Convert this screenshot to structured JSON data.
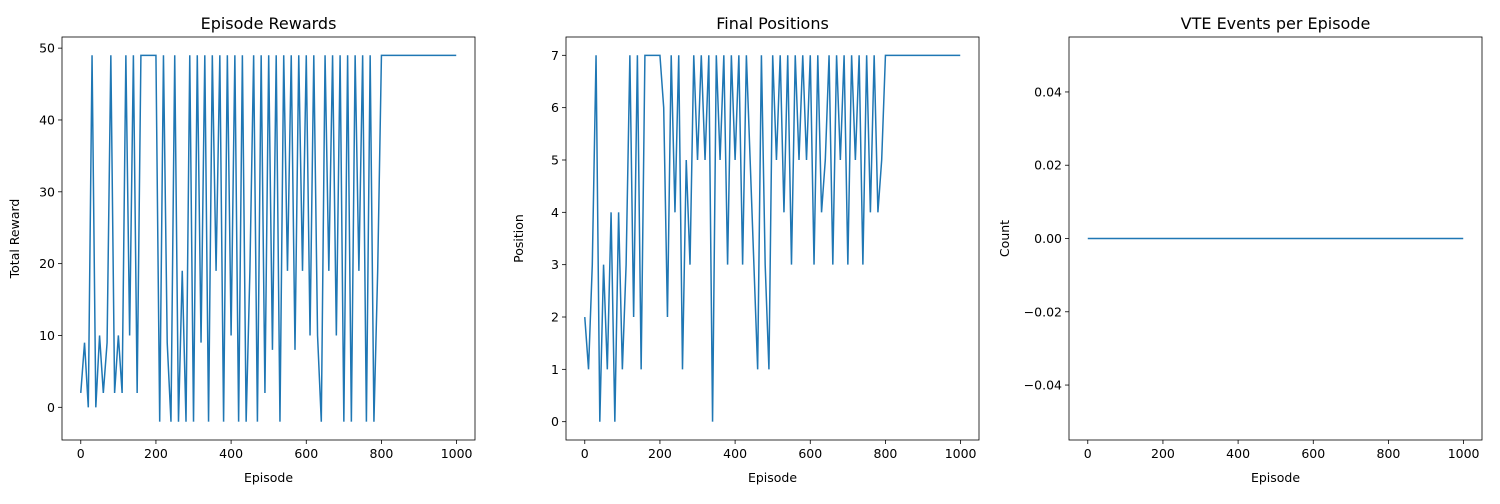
{
  "chart_data": [
    {
      "type": "line",
      "title": "Episode Rewards",
      "x_label": "Episode",
      "y_label": "Total Reward",
      "x": [
        0,
        10,
        20,
        30,
        40,
        50,
        60,
        70,
        80,
        90,
        100,
        110,
        120,
        130,
        140,
        150,
        160,
        170,
        180,
        190,
        200,
        210,
        220,
        230,
        240,
        250,
        260,
        270,
        280,
        290,
        300,
        310,
        320,
        330,
        340,
        350,
        360,
        370,
        380,
        390,
        400,
        410,
        420,
        430,
        440,
        450,
        460,
        470,
        480,
        490,
        500,
        510,
        520,
        530,
        540,
        550,
        560,
        570,
        580,
        590,
        600,
        610,
        620,
        630,
        640,
        650,
        660,
        670,
        680,
        690,
        700,
        710,
        720,
        730,
        740,
        750,
        760,
        770,
        780,
        790,
        800,
        999
      ],
      "series": [
        {
          "color": "#1f77b4",
          "values": [
            2,
            9,
            0,
            49,
            0,
            10,
            2,
            9,
            49,
            2,
            10,
            2,
            49,
            10,
            49,
            2,
            49,
            49,
            49,
            49,
            49,
            -2,
            49,
            9,
            -2,
            49,
            -2,
            19,
            -2,
            49,
            -2,
            49,
            9,
            49,
            -2,
            49,
            19,
            49,
            -2,
            49,
            10,
            49,
            -2,
            49,
            -2,
            19,
            49,
            -2,
            49,
            2,
            49,
            8,
            49,
            -2,
            49,
            19,
            49,
            8,
            49,
            19,
            49,
            10,
            49,
            10,
            -2,
            49,
            19,
            49,
            10,
            49,
            -2,
            49,
            -2,
            49,
            19,
            49,
            -2,
            49,
            -2,
            19,
            49,
            49
          ]
        }
      ],
      "xlim": [
        -49.95,
        1048.95
      ],
      "xticks": [
        0,
        200,
        400,
        600,
        800,
        1000
      ],
      "ylim": [
        -4.55,
        51.55
      ],
      "yticks": [
        0,
        10,
        20,
        30,
        40,
        50
      ]
    },
    {
      "type": "line",
      "title": "Final Positions",
      "x_label": "Episode",
      "y_label": "Position",
      "x": [
        0,
        10,
        20,
        30,
        40,
        50,
        60,
        70,
        80,
        90,
        100,
        110,
        120,
        130,
        140,
        150,
        160,
        170,
        180,
        190,
        200,
        210,
        220,
        230,
        240,
        250,
        260,
        270,
        280,
        290,
        300,
        310,
        320,
        330,
        340,
        350,
        360,
        370,
        380,
        390,
        400,
        410,
        420,
        430,
        440,
        450,
        460,
        470,
        480,
        490,
        500,
        510,
        520,
        530,
        540,
        550,
        560,
        570,
        580,
        590,
        600,
        610,
        620,
        630,
        640,
        650,
        660,
        670,
        680,
        690,
        700,
        710,
        720,
        730,
        740,
        750,
        760,
        770,
        780,
        790,
        800,
        999
      ],
      "series": [
        {
          "color": "#1f77b4",
          "values": [
            2,
            1,
            3,
            7,
            0,
            3,
            1,
            4,
            0,
            4,
            1,
            3,
            7,
            2,
            7,
            1,
            7,
            7,
            7,
            7,
            7,
            6,
            2,
            7,
            4,
            7,
            1,
            5,
            3,
            7,
            5,
            7,
            5,
            7,
            0,
            7,
            5,
            7,
            3,
            7,
            5,
            7,
            3,
            7,
            5,
            3,
            1,
            7,
            3,
            1,
            7,
            5,
            7,
            4,
            7,
            3,
            7,
            5,
            7,
            5,
            7,
            3,
            7,
            4,
            5,
            7,
            3,
            7,
            5,
            7,
            3,
            7,
            5,
            7,
            3,
            7,
            4,
            7,
            4,
            5,
            7,
            7
          ]
        }
      ],
      "xlim": [
        -49.95,
        1048.95
      ],
      "xticks": [
        0,
        200,
        400,
        600,
        800,
        1000
      ],
      "ylim": [
        -0.35,
        7.35
      ],
      "yticks": [
        0,
        1,
        2,
        3,
        4,
        5,
        6,
        7
      ]
    },
    {
      "type": "line",
      "title": "VTE Events per Episode",
      "x_label": "Episode",
      "y_label": "Count",
      "x": [
        0,
        999
      ],
      "series": [
        {
          "color": "#1f77b4",
          "values": [
            0,
            0
          ]
        }
      ],
      "xlim": [
        -49.95,
        1048.95
      ],
      "xticks": [
        0,
        200,
        400,
        600,
        800,
        1000
      ],
      "ylim": [
        -0.055,
        0.055
      ],
      "yticks": [
        {
          "value": -0.04,
          "label": "−0.04"
        },
        {
          "value": -0.02,
          "label": "−0.02"
        },
        {
          "value": 0,
          "label": "0.00"
        },
        {
          "value": 0.02,
          "label": "0.02"
        },
        {
          "value": 0.04,
          "label": "0.04"
        }
      ]
    }
  ]
}
